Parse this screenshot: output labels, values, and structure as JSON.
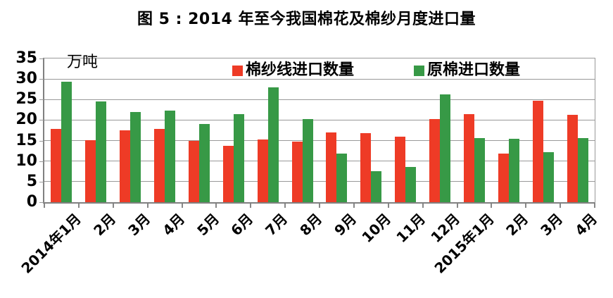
{
  "title": "图 5 : 2014 年至今我国棉花及棉纱月度进口量",
  "chart_data": {
    "type": "bar",
    "title": "图 5 : 2014 年至今我国棉花及棉纱月度进口量",
    "unit_label": "万吨",
    "categories": [
      "2014年1月",
      "2月",
      "3月",
      "4月",
      "5月",
      "6月",
      "7月",
      "8月",
      "9月",
      "10月",
      "11月",
      "12月",
      "2015年1月",
      "2月",
      "3月",
      "4月"
    ],
    "series": [
      {
        "name": "棉纱线进口数量",
        "color": "#EE3B26",
        "values": [
          17.9,
          15.1,
          17.5,
          17.8,
          15.0,
          13.7,
          15.3,
          14.7,
          17.0,
          16.9,
          15.9,
          20.3,
          21.5,
          11.9,
          24.7,
          21.2
        ]
      },
      {
        "name": "原棉进口数量",
        "color": "#379946",
        "values": [
          29.4,
          24.5,
          22.0,
          22.3,
          19.0,
          21.5,
          28.0,
          20.3,
          11.8,
          7.6,
          8.5,
          26.3,
          15.6,
          15.5,
          12.2,
          15.7
        ]
      }
    ],
    "ylim": [
      0,
      35
    ],
    "yticks": [
      0,
      5,
      10,
      15,
      20,
      25,
      30,
      35
    ],
    "grid": true,
    "legend_position": "top-inside"
  },
  "colors": {
    "yarn_series": "#EE3B26",
    "cotton_series": "#379946",
    "gridline": "#999999",
    "axis": "#808080",
    "text": "#000000",
    "background": "#ffffff"
  }
}
